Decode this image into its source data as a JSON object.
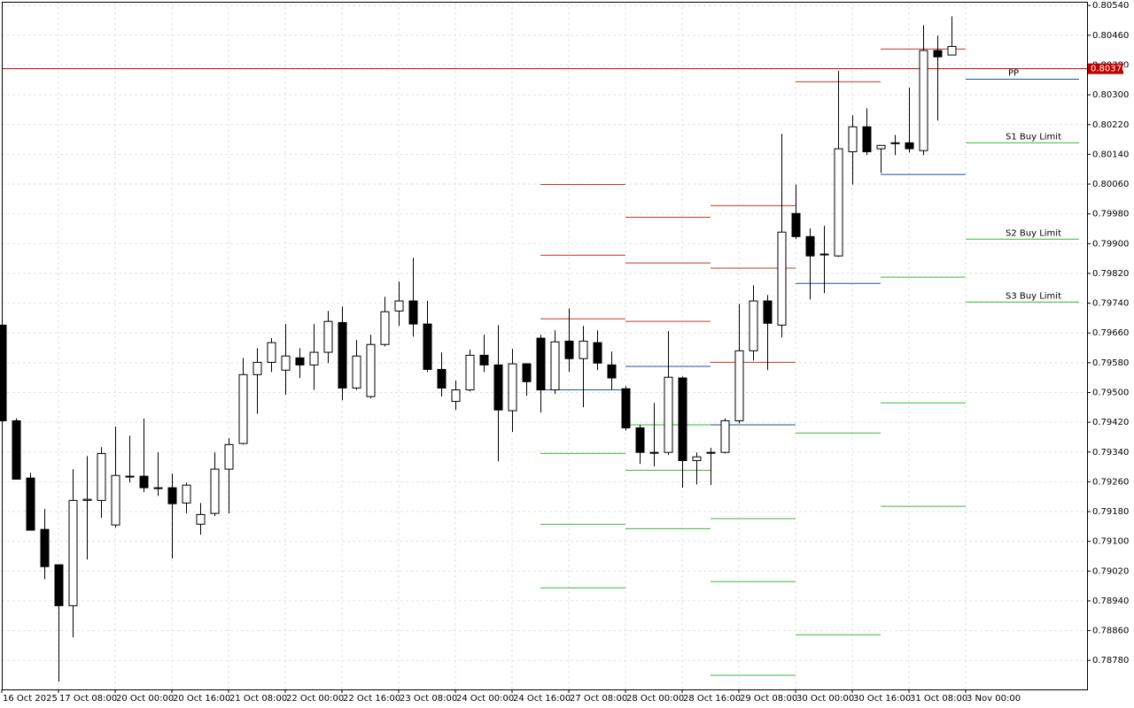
{
  "chart_data": {
    "type": "candlestick",
    "categories": [
      "16 Oct 2025",
      null,
      null,
      null,
      "17 Oct 08:00",
      null,
      null,
      null,
      "20 Oct 00:00",
      null,
      null,
      null,
      "20 Oct 16:00",
      null,
      null,
      null,
      "21 Oct 08:00",
      null,
      null,
      null,
      "22 Oct 00:00",
      null,
      null,
      null,
      "22 Oct 16:00",
      null,
      null,
      null,
      "23 Oct 08:00",
      null,
      null,
      null,
      "24 Oct 00:00",
      null,
      null,
      null,
      "24 Oct 16:00",
      null,
      null,
      null,
      "27 Oct 08:00",
      null,
      null,
      null,
      "28 Oct 00:00",
      null,
      null,
      null,
      "28 Oct 16:00",
      null,
      null,
      null,
      "29 Oct 08:00",
      null,
      null,
      null,
      "30 Oct 00:00",
      null,
      null,
      null,
      "30 Oct 16:00",
      null,
      null,
      null,
      "31 Oct 08:00",
      null,
      null,
      null,
      "3 Nov 00:00"
    ],
    "open": [
      0.79681,
      0.79424,
      0.7927,
      0.79132,
      0.79037,
      0.78927,
      0.7921,
      0.7921,
      0.79144,
      0.79275,
      0.79275,
      0.79244,
      0.79244,
      0.79203,
      0.79146,
      0.79175,
      0.79294,
      0.79363,
      0.79548,
      0.79581,
      0.7956,
      0.79593,
      0.79574,
      0.79608,
      0.79688,
      0.79512,
      0.79489,
      0.79629,
      0.79719,
      0.79746,
      0.79684,
      0.79562,
      0.79476,
      0.79507,
      0.796,
      0.79574,
      0.79451,
      0.79577,
      0.79646,
      0.79507,
      0.79638,
      0.79591,
      0.79634,
      0.79574,
      0.7951,
      0.79405,
      0.79339,
      0.79339,
      0.79539,
      0.79317,
      0.79339,
      0.79339,
      0.79424,
      0.79612,
      0.79746,
      0.79681,
      0.79981,
      0.79919,
      0.79872,
      0.79867,
      0.80147,
      0.80214,
      0.80155,
      0.80171,
      0.80171,
      0.8015,
      0.80419,
      0.80407,
      null
    ],
    "high": [
      0.79686,
      0.7943,
      0.79284,
      0.79187,
      0.79037,
      0.79294,
      0.79329,
      0.79353,
      0.79408,
      0.79384,
      0.7943,
      0.79339,
      0.79282,
      0.79258,
      0.79203,
      0.79339,
      0.79377,
      0.79593,
      0.79619,
      0.79646,
      0.79684,
      0.79619,
      0.79684,
      0.79719,
      0.79731,
      0.79641,
      0.79655,
      0.79757,
      0.79798,
      0.79862,
      0.79746,
      0.79608,
      0.79532,
      0.79615,
      0.79655,
      0.79681,
      0.79617,
      0.79579,
      0.79655,
      0.79667,
      0.79726,
      0.79679,
      0.79667,
      0.7961,
      0.79517,
      0.79413,
      0.79472,
      0.79665,
      0.79543,
      0.79339,
      0.79351,
      0.7943,
      0.79738,
      0.79788,
      0.79762,
      0.80195,
      0.80059,
      0.79941,
      0.79948,
      0.80364,
      0.80245,
      0.80264,
      0.80164,
      0.80192,
      0.80319,
      0.80487,
      0.80459,
      0.80511,
      null
    ],
    "low": [
      0.79424,
      0.79267,
      0.7913,
      0.78998,
      0.78723,
      0.78842,
      0.79051,
      0.79163,
      0.79137,
      0.79258,
      0.79232,
      0.79222,
      0.79054,
      0.79175,
      0.79118,
      0.79168,
      0.79175,
      0.7936,
      0.79443,
      0.79555,
      0.79494,
      0.79539,
      0.79507,
      0.79579,
      0.79479,
      0.79507,
      0.79484,
      0.79624,
      0.79679,
      0.7965,
      0.79555,
      0.79489,
      0.79453,
      0.79503,
      0.79555,
      0.79315,
      0.79394,
      0.79491,
      0.79446,
      0.79496,
      0.79555,
      0.7946,
      0.7956,
      0.79507,
      0.79398,
      0.79308,
      0.79301,
      0.79332,
      0.79244,
      0.79253,
      0.79251,
      0.79336,
      0.79417,
      0.79586,
      0.7956,
      0.79648,
      0.79912,
      0.7975,
      0.79767,
      0.79864,
      0.80059,
      0.80138,
      0.8009,
      0.80138,
      0.80145,
      0.80138,
      0.80231,
      0.80407,
      null
    ],
    "close": [
      0.79424,
      0.79267,
      0.7913,
      0.79032,
      0.78927,
      0.7921,
      0.79213,
      0.79336,
      0.79277,
      0.79275,
      0.79244,
      0.79244,
      0.79201,
      0.79251,
      0.79172,
      0.79294,
      0.7936,
      0.79548,
      0.79581,
      0.79634,
      0.79598,
      0.79574,
      0.79608,
      0.79691,
      0.79512,
      0.79598,
      0.79629,
      0.79717,
      0.79746,
      0.79684,
      0.79562,
      0.79512,
      0.79507,
      0.796,
      0.79574,
      0.79453,
      0.79577,
      0.79529,
      0.79507,
      0.79636,
      0.79591,
      0.79638,
      0.79579,
      0.79539,
      0.79405,
      0.79339,
      0.79339,
      0.79541,
      0.79317,
      0.79327,
      0.79339,
      0.79424,
      0.79612,
      0.79746,
      0.79686,
      0.79931,
      0.79919,
      0.79867,
      0.79872,
      0.80155,
      0.80214,
      0.80147,
      0.80164,
      0.80171,
      0.80155,
      0.80419,
      0.80402,
      0.8043,
      null
    ],
    "up_color": "#ffffff",
    "down_color": "#000000",
    "ylim": [
      0.78702,
      0.8055
    ],
    "yticks": [
      {
        "value": 0.7878,
        "label": "0.78780"
      },
      {
        "value": 0.7886,
        "label": "0.78860"
      },
      {
        "value": 0.7894,
        "label": "0.78940"
      },
      {
        "value": 0.7902,
        "label": "0.79020"
      },
      {
        "value": 0.791,
        "label": "0.79100"
      },
      {
        "value": 0.7918,
        "label": "0.79180"
      },
      {
        "value": 0.7926,
        "label": "0.79260"
      },
      {
        "value": 0.7934,
        "label": "0.79340"
      },
      {
        "value": 0.7942,
        "label": "0.79420"
      },
      {
        "value": 0.795,
        "label": "0.79500"
      },
      {
        "value": 0.7958,
        "label": "0.79580"
      },
      {
        "value": 0.7966,
        "label": "0.79660"
      },
      {
        "value": 0.7974,
        "label": "0.79740"
      },
      {
        "value": 0.7982,
        "label": "0.79820"
      },
      {
        "value": 0.799,
        "label": "0.79900"
      },
      {
        "value": 0.7998,
        "label": "0.79980"
      },
      {
        "value": 0.8006,
        "label": "0.80060"
      },
      {
        "value": 0.8014,
        "label": "0.80140"
      },
      {
        "value": 0.8022,
        "label": "0.80220"
      },
      {
        "value": 0.803,
        "label": "0.80300"
      },
      {
        "value": 0.8038,
        "label": "0.80380"
      },
      {
        "value": 0.8046,
        "label": "0.80460"
      },
      {
        "value": 0.8054,
        "label": "0.80540"
      }
    ],
    "grid": true,
    "price_line": {
      "value": 0.8037,
      "label": "0.80370",
      "color": "#c00000"
    },
    "level_colors": {
      "resistance": "#c0392b",
      "pivot": "#1f4e9c",
      "support": "#3cb83c"
    },
    "levels": [
      {
        "start": 38,
        "end": 44,
        "resistance": [
          0.80059,
          0.79869,
          0.79698
        ],
        "pivot": [
          0.79507
        ],
        "support": [
          0.79336,
          0.79146,
          0.78975
        ]
      },
      {
        "start": 44,
        "end": 50,
        "resistance": [
          0.79971,
          0.79848,
          0.79691
        ],
        "pivot": [
          0.7957
        ],
        "support": [
          0.79413,
          0.79291,
          0.79134
        ]
      },
      {
        "start": 50,
        "end": 56,
        "resistance": [
          0.80002,
          0.79834,
          0.79581
        ],
        "pivot": [
          0.79413
        ],
        "support": [
          0.79161,
          0.78992,
          0.7874
        ]
      },
      {
        "start": 56,
        "end": 62,
        "resistance": [
          0.80335
        ],
        "pivot": [
          0.79793
        ],
        "support": [
          0.79391,
          0.78849
        ]
      },
      {
        "start": 62,
        "end": 68,
        "resistance": [
          0.80423
        ],
        "pivot": [
          0.80086
        ],
        "support": [
          0.7981,
          0.79472,
          0.79194
        ]
      },
      {
        "start": 68,
        "end": 76,
        "pivot": [
          {
            "value": 0.80342,
            "label": "PP"
          }
        ],
        "support": [
          {
            "value": 0.80171,
            "label": "S1 Buy Limit"
          },
          {
            "value": 0.79912,
            "label": "S2 Buy Limit"
          },
          {
            "value": 0.79743,
            "label": "S3 Buy Limit"
          }
        ]
      }
    ]
  }
}
